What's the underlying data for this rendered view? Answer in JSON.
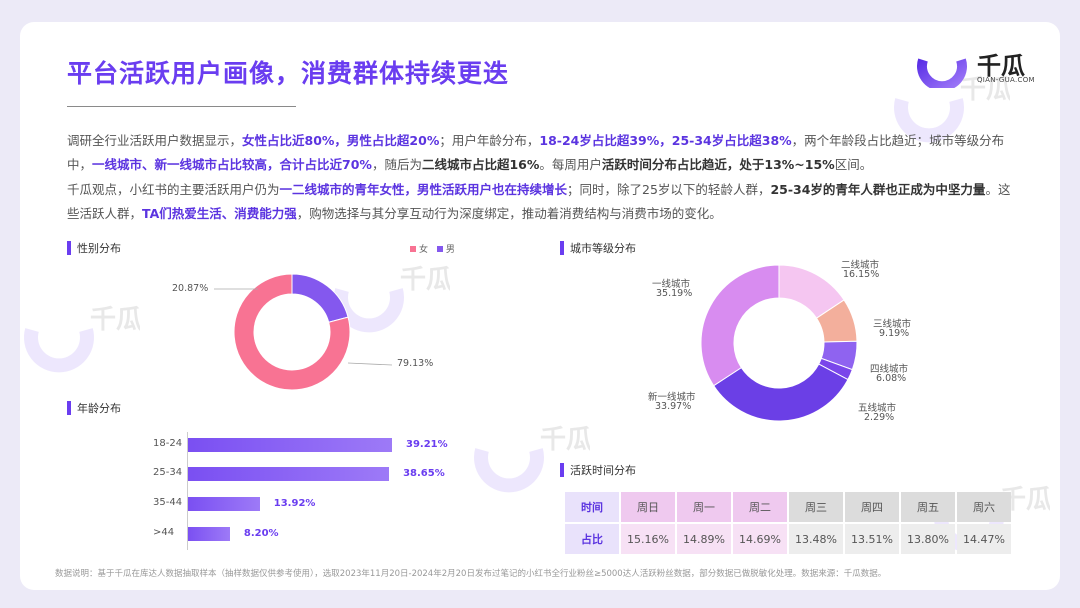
{
  "title": "平台活跃用户画像，消费群体持续更迭",
  "brand": {
    "name": "千瓜",
    "url": "QIAN-GUA.COM",
    "accent": "#6a3df0"
  },
  "paragraphs": {
    "p1": [
      {
        "t": "调研全行业活跃用户数据显示，",
        "s": ""
      },
      {
        "t": "女性占比近80%，男性占比超20%",
        "s": "b"
      },
      {
        "t": "；用户年龄分布，",
        "s": ""
      },
      {
        "t": "18-24岁占比超39%，25-34岁占比超38%",
        "s": "b"
      },
      {
        "t": "，两个年龄段占比趋近；城市等级分布中，",
        "s": ""
      },
      {
        "t": "一线城市、新一线城市占比较高，合计占比近70%",
        "s": "b"
      },
      {
        "t": "，随后为",
        "s": ""
      },
      {
        "t": "二线城市占比超16%",
        "s": "dk"
      },
      {
        "t": "。每周用户",
        "s": ""
      },
      {
        "t": "活跃时间分布占比趋近，处于13%~15%",
        "s": "dk"
      },
      {
        "t": "区间。",
        "s": ""
      }
    ],
    "p2": [
      {
        "t": "千瓜观点，小红书的主要活跃用户仍为",
        "s": ""
      },
      {
        "t": "一二线城市的青年女性，男性活跃用户也在持续增长",
        "s": "b"
      },
      {
        "t": "；同时，除了25岁以下的轻龄人群，",
        "s": ""
      },
      {
        "t": "25-34岁的青年人群也正成为中坚力量",
        "s": "dk"
      },
      {
        "t": "。这些活跃人群，",
        "s": ""
      },
      {
        "t": "TA们热爱生活、消费能力强",
        "s": "b"
      },
      {
        "t": "，购物选择与其分享互动行为深度绑定，推动着消费结构与消费市场的变化。",
        "s": ""
      }
    ]
  },
  "sections": {
    "gender": "性别分布",
    "age": "年龄分布",
    "city": "城市等级分布",
    "activity": "活跃时间分布"
  },
  "chart_data": [
    {
      "type": "pie",
      "title": "性别分布",
      "legend_position": "top-right",
      "labels": [
        "女",
        "男"
      ],
      "values": [
        79.13,
        20.87
      ],
      "value_labels": [
        "79.13%",
        "20.87%"
      ],
      "colors": [
        "#f87393",
        "#8458ee"
      ]
    },
    {
      "type": "bar",
      "orientation": "horizontal",
      "title": "年龄分布",
      "categories": [
        "18-24",
        "25-34",
        "35-44",
        ">44"
      ],
      "values": [
        39.21,
        38.65,
        13.92,
        8.2
      ],
      "value_labels": [
        "39.21%",
        "38.65%",
        "13.92%",
        "8.20%"
      ]
    },
    {
      "type": "pie",
      "title": "城市等级分布",
      "labels": [
        "二线城市",
        "三线城市",
        "四线城市",
        "五线城市",
        "新一线城市",
        "一线城市"
      ],
      "values": [
        16.15,
        9.19,
        6.08,
        2.29,
        33.97,
        35.19
      ],
      "value_labels": [
        "16.15%",
        "9.19%",
        "6.08%",
        "2.29%",
        "33.97%",
        "35.19%"
      ],
      "colors": [
        "#f5c6f1",
        "#f3af9c",
        "#8f63f0",
        "#7a46ea",
        "#6b3fe6",
        "#d88cf0"
      ]
    },
    {
      "type": "table",
      "title": "活跃时间分布",
      "row_headers": [
        "时间",
        "占比"
      ],
      "columns": [
        "周日",
        "周一",
        "周二",
        "周三",
        "周四",
        "周五",
        "周六"
      ],
      "values": [
        "15.16%",
        "14.89%",
        "14.69%",
        "13.48%",
        "13.51%",
        "13.80%",
        "14.47%"
      ]
    }
  ],
  "footer": "数据说明：基于千瓜在库达人数据抽取样本（抽样数据仅供参考使用），选取2023年11月20日-2024年2月20日发布过笔记的小红书全行业粉丝≥5000达人活跃粉丝数据，部分数据已做脱敏化处理。数据来源：千瓜数据。"
}
